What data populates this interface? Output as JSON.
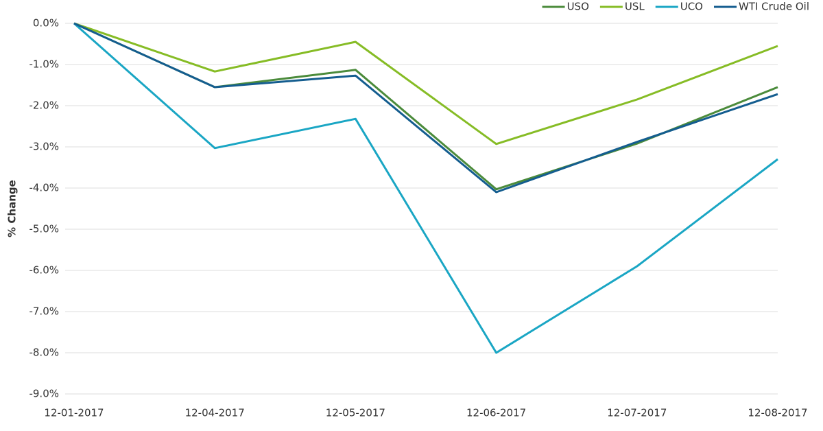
{
  "chart_data": {
    "type": "line",
    "y_label": "% Change",
    "categories": [
      "12-01-2017",
      "12-04-2017",
      "12-05-2017",
      "12-06-2017",
      "12-07-2017",
      "12-08-2017"
    ],
    "series": [
      {
        "name": "USO",
        "color": "#4b8b3b",
        "values": [
          0,
          -1.55,
          -1.13,
          -4.03,
          -2.92,
          -1.55
        ]
      },
      {
        "name": "USL",
        "color": "#86bc25",
        "values": [
          0,
          -1.17,
          -0.45,
          -2.93,
          -1.85,
          -0.55
        ]
      },
      {
        "name": "UCO",
        "color": "#1aa6c4",
        "values": [
          0,
          -3.03,
          -2.32,
          -8.0,
          -5.9,
          -3.3
        ]
      },
      {
        "name": "WTI Crude Oil",
        "color": "#145d8f",
        "values": [
          0,
          -1.55,
          -1.27,
          -4.1,
          -2.88,
          -1.72
        ]
      }
    ],
    "ylim": [
      -9,
      0
    ],
    "yticks": [
      {
        "value": 0,
        "label": "0.0%"
      },
      {
        "value": -1,
        "label": "-1.0%"
      },
      {
        "value": -2,
        "label": "-2.0%"
      },
      {
        "value": -3,
        "label": "-3.0%"
      },
      {
        "value": -4,
        "label": "-4.0%"
      },
      {
        "value": -5,
        "label": "-5.0%"
      },
      {
        "value": -6,
        "label": "-6.0%"
      },
      {
        "value": -7,
        "label": "-7.0%"
      },
      {
        "value": -8,
        "label": "-8.0%"
      },
      {
        "value": -9,
        "label": "-9.0%"
      }
    ],
    "grid": true,
    "legend": "top-right"
  }
}
